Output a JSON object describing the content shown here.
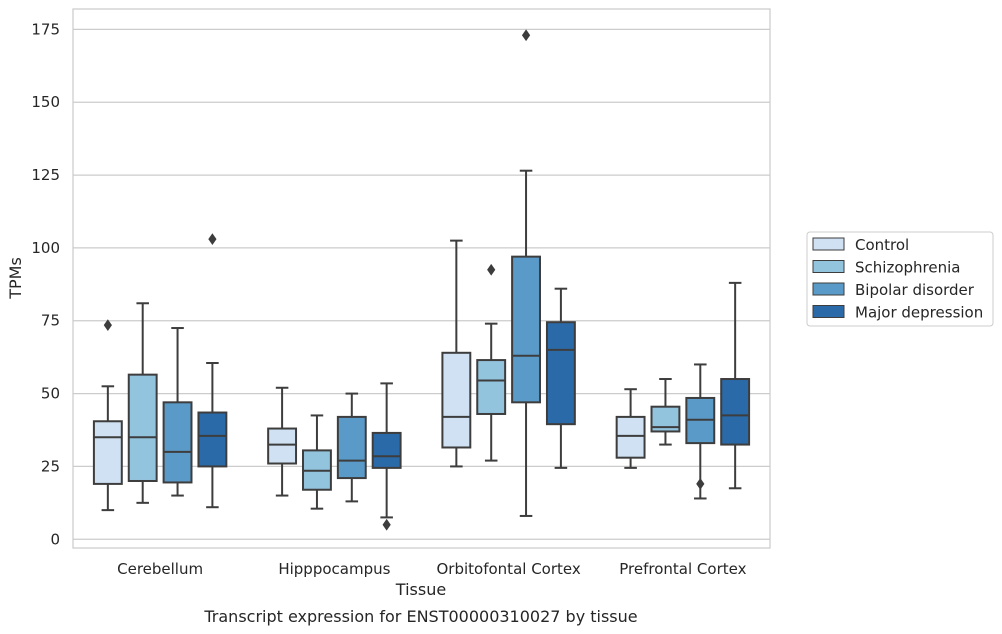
{
  "chart_data": {
    "type": "box",
    "caption": "Transcript expression for ENST00000310027 by tissue",
    "xlabel": "Tissue",
    "ylabel": "TPMs",
    "ylim": [
      -3,
      182
    ],
    "yticks": [
      0,
      25,
      50,
      75,
      100,
      125,
      150,
      175
    ],
    "grid": "horizontal",
    "legend_position": "right",
    "categories": [
      "Cerebellum",
      "Hipppocampus",
      "Orbitofontal Cortex",
      "Prefrontal Cortex"
    ],
    "series": [
      {
        "name": "Control",
        "color": "#cfe1f2",
        "boxes": [
          {
            "whisker_low": 10,
            "q1": 19,
            "median": 35,
            "q3": 40.5,
            "whisker_high": 52.5,
            "outliers": [
              73.5
            ]
          },
          {
            "whisker_low": 15,
            "q1": 26,
            "median": 32.5,
            "q3": 38,
            "whisker_high": 52,
            "outliers": []
          },
          {
            "whisker_low": 25,
            "q1": 31.5,
            "median": 42,
            "q3": 64,
            "whisker_high": 102.5,
            "outliers": []
          },
          {
            "whisker_low": 24.5,
            "q1": 28,
            "median": 35.5,
            "q3": 42,
            "whisker_high": 51.5,
            "outliers": []
          }
        ]
      },
      {
        "name": "Schizophrenia",
        "color": "#93c4de",
        "boxes": [
          {
            "whisker_low": 12.5,
            "q1": 20,
            "median": 35,
            "q3": 56.5,
            "whisker_high": 81,
            "outliers": []
          },
          {
            "whisker_low": 10.5,
            "q1": 17,
            "median": 23.5,
            "q3": 30.5,
            "whisker_high": 42.5,
            "outliers": []
          },
          {
            "whisker_low": 27,
            "q1": 43,
            "median": 54.5,
            "q3": 61.5,
            "whisker_high": 74,
            "outliers": [
              92.5
            ]
          },
          {
            "whisker_low": 32.5,
            "q1": 37,
            "median": 38.5,
            "q3": 45.5,
            "whisker_high": 55,
            "outliers": []
          }
        ]
      },
      {
        "name": "Bipolar disorder",
        "color": "#5a9ac8",
        "boxes": [
          {
            "whisker_low": 15,
            "q1": 19.5,
            "median": 30,
            "q3": 47,
            "whisker_high": 72.5,
            "outliers": []
          },
          {
            "whisker_low": 13,
            "q1": 21,
            "median": 27,
            "q3": 42,
            "whisker_high": 50,
            "outliers": []
          },
          {
            "whisker_low": 8,
            "q1": 47,
            "median": 63,
            "q3": 97,
            "whisker_high": 126.5,
            "outliers": [
              173
            ]
          },
          {
            "whisker_low": 14,
            "q1": 33,
            "median": 41,
            "q3": 48.5,
            "whisker_high": 60,
            "outliers": [
              19
            ]
          }
        ]
      },
      {
        "name": "Major depression",
        "color": "#2b6aa8",
        "boxes": [
          {
            "whisker_low": 11,
            "q1": 25,
            "median": 35.5,
            "q3": 43.5,
            "whisker_high": 60.5,
            "outliers": [
              103
            ]
          },
          {
            "whisker_low": 7.5,
            "q1": 24.5,
            "median": 28.5,
            "q3": 36.5,
            "whisker_high": 53.5,
            "outliers": [
              5
            ]
          },
          {
            "whisker_low": 24.5,
            "q1": 39.5,
            "median": 65,
            "q3": 74.5,
            "whisker_high": 86,
            "outliers": []
          },
          {
            "whisker_low": 17.5,
            "q1": 32.5,
            "median": 42.5,
            "q3": 55,
            "whisker_high": 88,
            "outliers": []
          }
        ]
      }
    ]
  }
}
